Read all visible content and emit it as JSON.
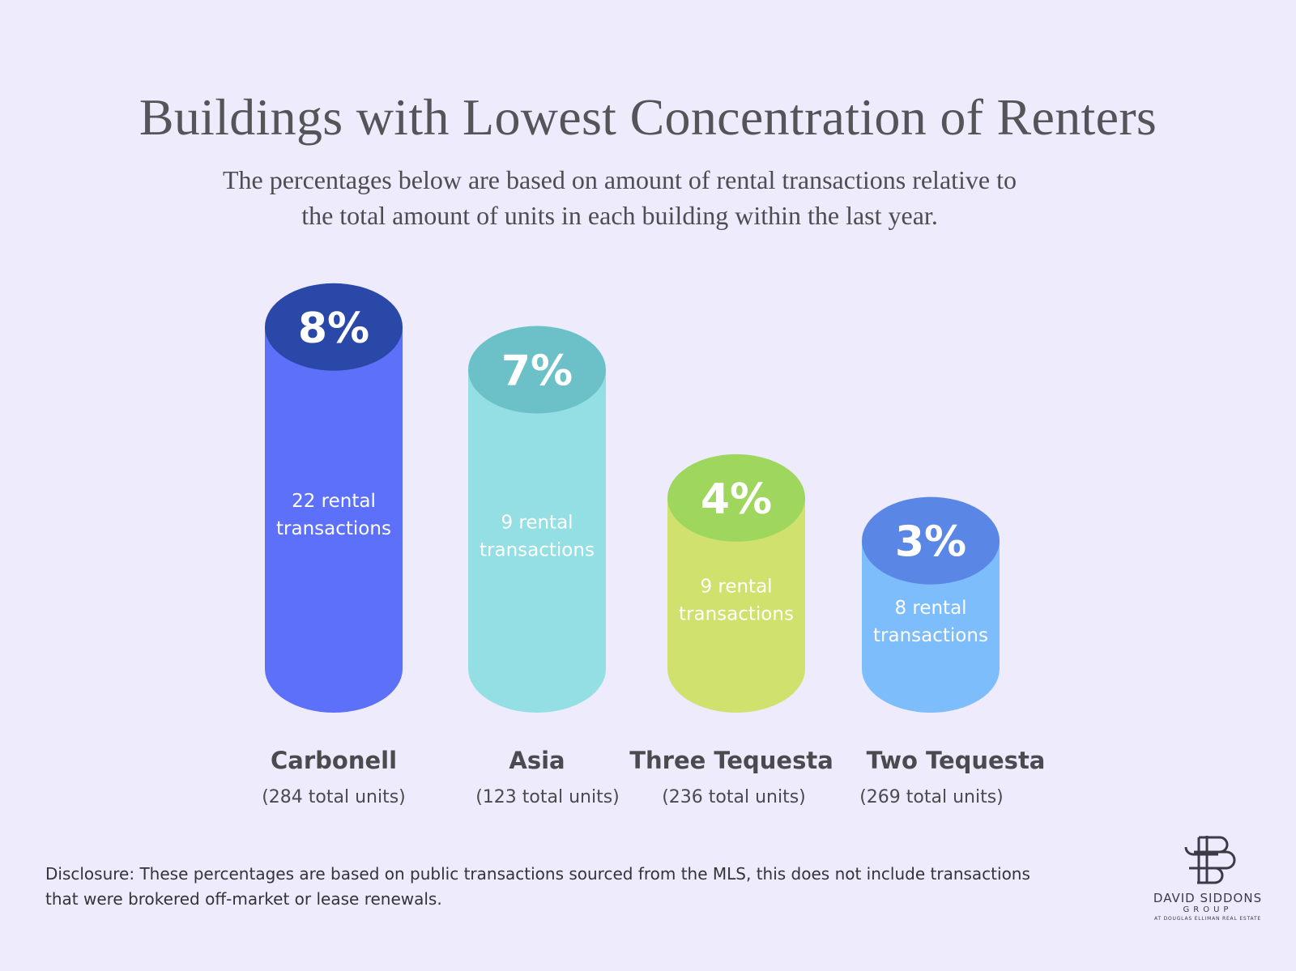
{
  "title": "Buildings with Lowest Concentration of Renters",
  "subtitle": {
    "line1": "The percentages below are based on amount of rental transactions relative to",
    "line2": "the total amount of units in each building within the last year."
  },
  "chart_data": {
    "type": "bar",
    "title": "Buildings with Lowest Concentration of Renters",
    "categories": [
      "Carbonell",
      "Asia",
      "Three Tequesta",
      "Two Tequesta"
    ],
    "values": [
      8,
      7,
      4,
      3
    ],
    "value_labels": [
      "8%",
      "7%",
      "4%",
      "3%"
    ],
    "transactions_labels": [
      [
        "22 rental",
        "transactions"
      ],
      [
        "9 rental",
        "transactions"
      ],
      [
        "9 rental",
        "transactions"
      ],
      [
        "8 rental",
        "transactions"
      ]
    ],
    "units_labels": [
      "(284 total units)",
      "(123 total units)",
      "(236 total units)",
      "(269 total units)"
    ],
    "colors": [
      {
        "body": "#5c70fa",
        "top": "#2a48a8"
      },
      {
        "body": "#94dfe4",
        "top": "#6cc1c8"
      },
      {
        "body": "#d1e16e",
        "top": "#9ed65e"
      },
      {
        "body": "#7dbdfb",
        "top": "#5a87e6"
      }
    ],
    "grid": false,
    "legend": "none",
    "style": "cylinder"
  },
  "disclosure": {
    "line1": "Disclosure: These percentages are based on public transactions sourced from the MLS, this does not include transactions",
    "line2": "that were brokered off-market or lease renewals."
  },
  "logo": {
    "name": "DAVID SIDDONS",
    "group": "GROUP",
    "sub": "AT DOUGLAS ELLIMAN REAL ESTATE"
  }
}
